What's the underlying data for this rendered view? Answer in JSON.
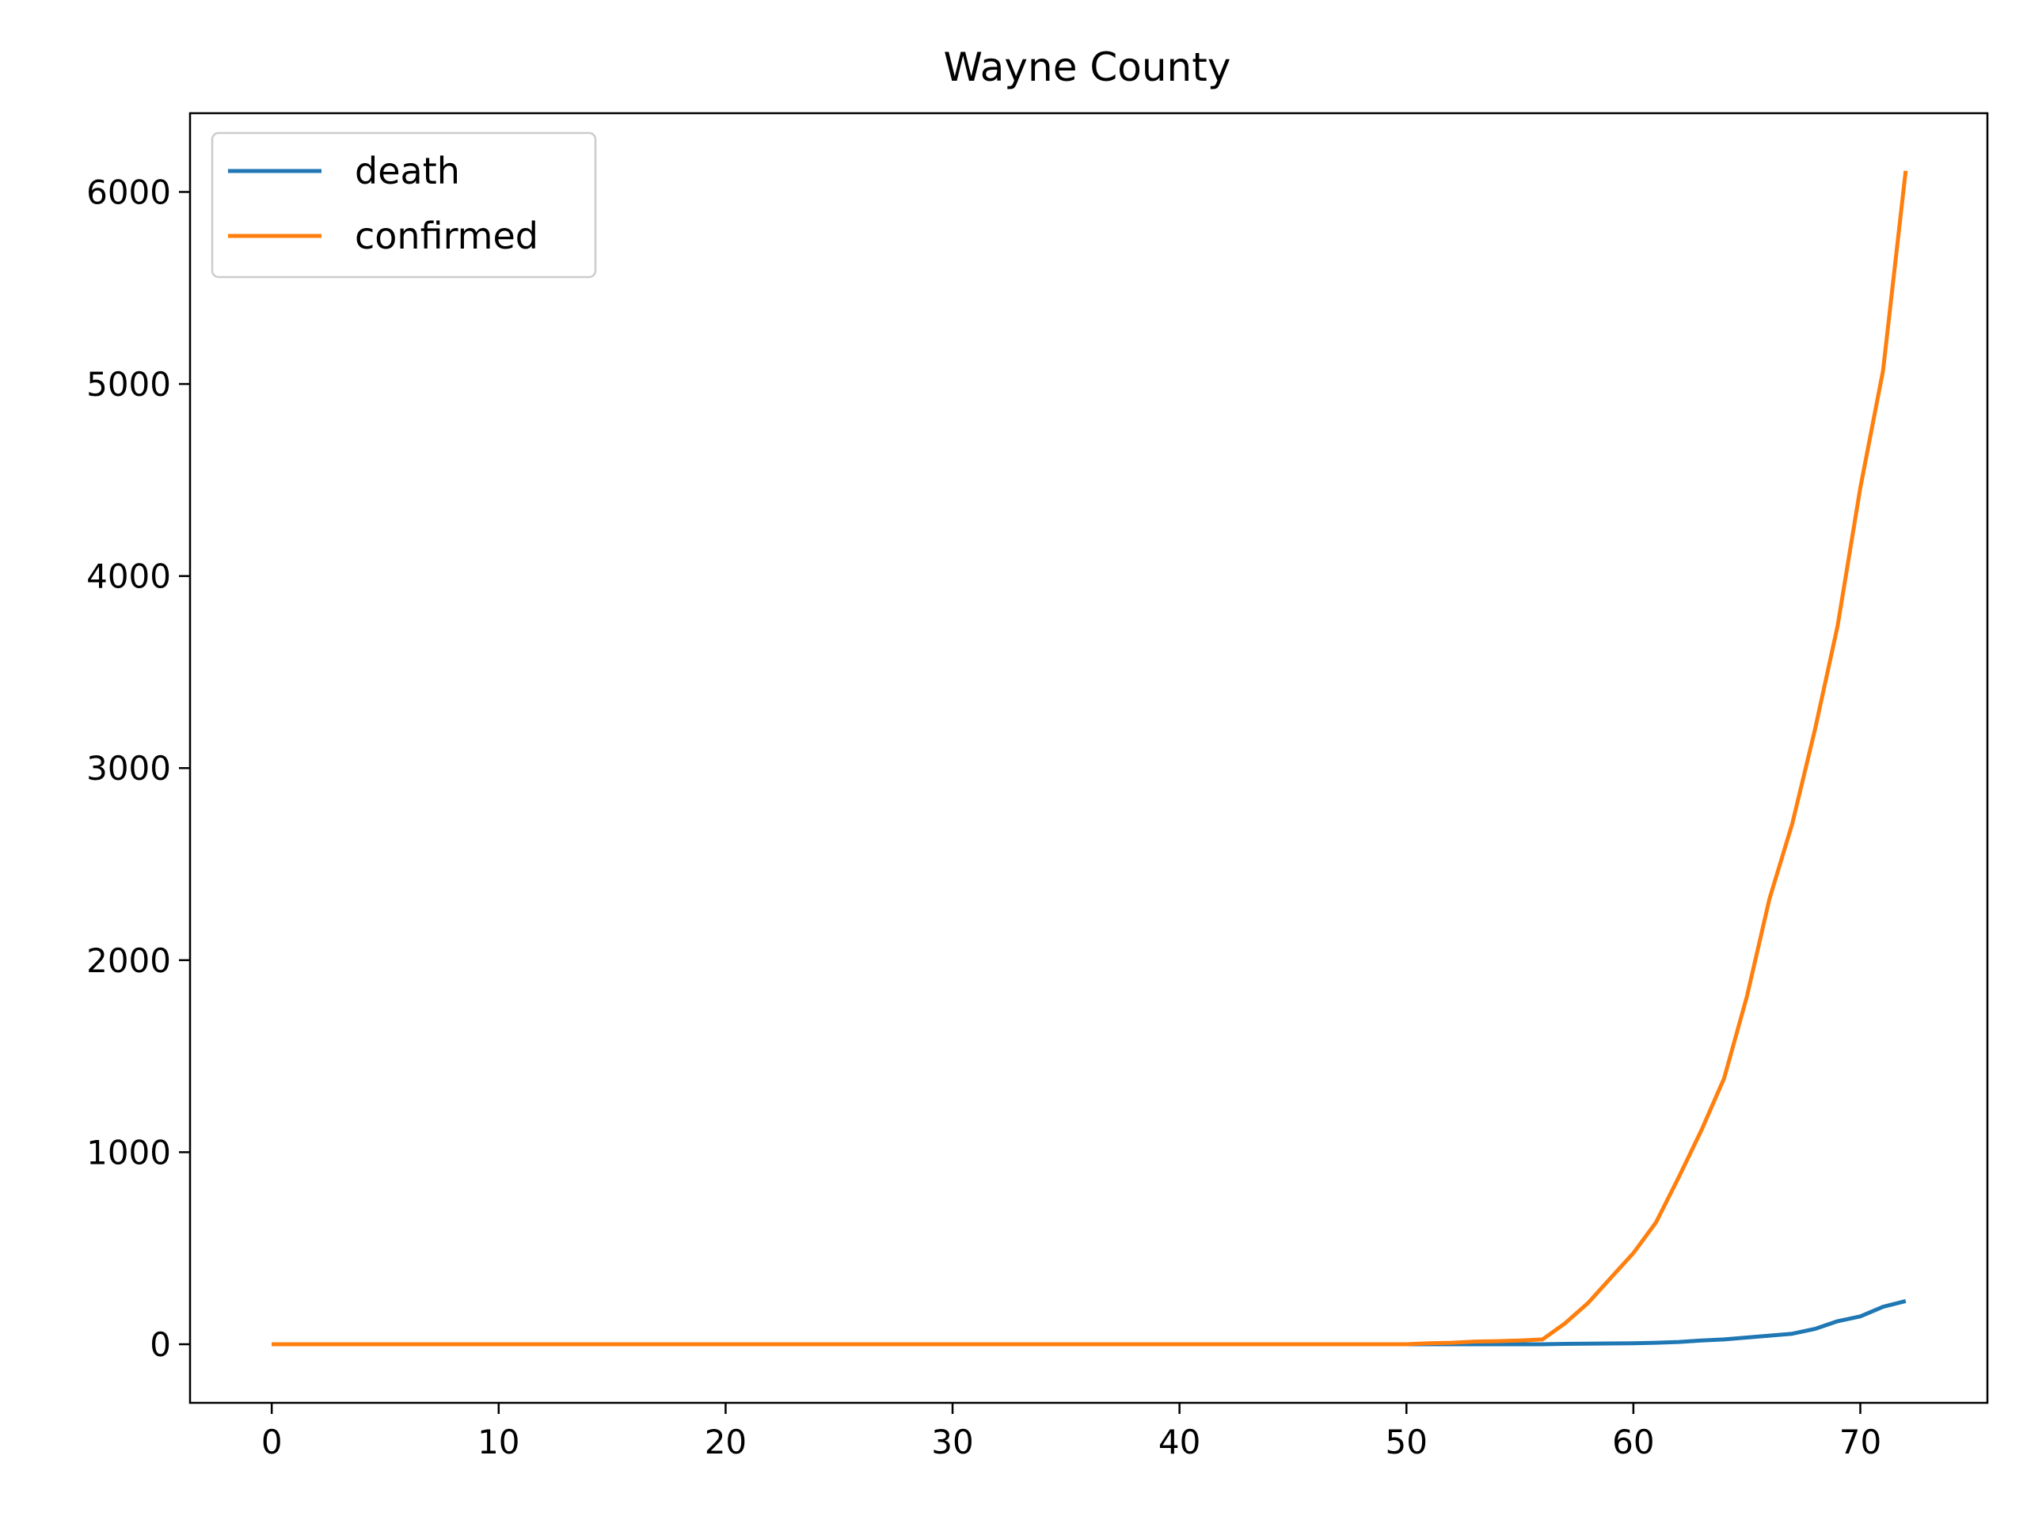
{
  "chart_data": {
    "type": "line",
    "title": "Wayne County",
    "xlabel": "",
    "ylabel": "",
    "xlim": [
      -3.6,
      75.6
    ],
    "ylim": [
      -305,
      6410
    ],
    "xticks": [
      0,
      10,
      20,
      30,
      40,
      50,
      60,
      70
    ],
    "yticks": [
      0,
      1000,
      2000,
      3000,
      4000,
      5000,
      6000
    ],
    "grid": false,
    "legend_position": "top-left",
    "x": [
      0,
      1,
      2,
      3,
      4,
      5,
      6,
      7,
      8,
      9,
      10,
      11,
      12,
      13,
      14,
      15,
      16,
      17,
      18,
      19,
      20,
      21,
      22,
      23,
      24,
      25,
      26,
      27,
      28,
      29,
      30,
      31,
      32,
      33,
      34,
      35,
      36,
      37,
      38,
      39,
      40,
      41,
      42,
      43,
      44,
      45,
      46,
      47,
      48,
      49,
      50,
      51,
      52,
      53,
      54,
      55,
      56,
      57,
      58,
      59,
      60,
      61,
      62,
      63,
      64,
      65,
      66,
      67,
      68,
      69,
      70,
      71,
      72
    ],
    "series": [
      {
        "name": "death",
        "color": "#1f77b4",
        "values": [
          0,
          0,
          0,
          0,
          0,
          0,
          0,
          0,
          0,
          0,
          0,
          0,
          0,
          0,
          0,
          0,
          0,
          0,
          0,
          0,
          0,
          0,
          0,
          0,
          0,
          0,
          0,
          0,
          0,
          0,
          0,
          0,
          0,
          0,
          0,
          0,
          0,
          0,
          0,
          0,
          0,
          0,
          0,
          0,
          0,
          0,
          0,
          0,
          0,
          0,
          0,
          0,
          0,
          0,
          0,
          0,
          0,
          2,
          3,
          4,
          5,
          8,
          12,
          20,
          25,
          35,
          45,
          55,
          80,
          120,
          145,
          195,
          225
        ]
      },
      {
        "name": "confirmed",
        "color": "#ff7f0e",
        "values": [
          0,
          0,
          0,
          0,
          0,
          0,
          0,
          0,
          0,
          0,
          0,
          0,
          0,
          0,
          0,
          0,
          0,
          0,
          0,
          0,
          0,
          0,
          0,
          0,
          0,
          0,
          0,
          0,
          0,
          0,
          0,
          0,
          0,
          0,
          0,
          0,
          0,
          0,
          0,
          0,
          0,
          0,
          0,
          0,
          0,
          0,
          0,
          0,
          0,
          0,
          0,
          5,
          8,
          14,
          16,
          20,
          25,
          110,
          215,
          345,
          475,
          635,
          870,
          1115,
          1385,
          1810,
          2320,
          2710,
          3200,
          3740,
          4460,
          5070,
          6110
        ]
      }
    ]
  }
}
